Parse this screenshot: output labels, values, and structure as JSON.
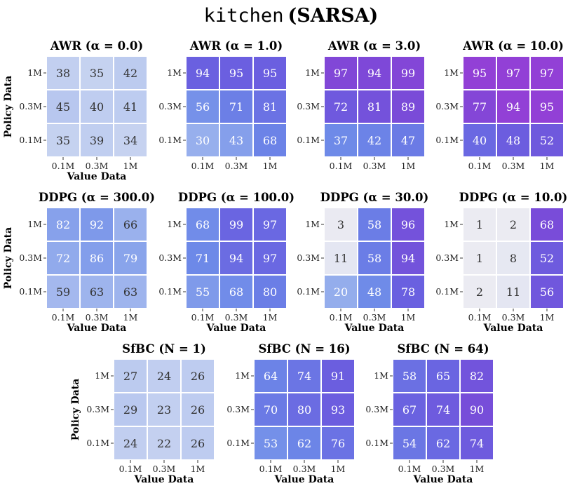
{
  "figure": {
    "title_env": "kitchen",
    "title_algo": "(SARSA)"
  },
  "colors": {
    "palette": [
      "#ececf2",
      "#c3d0f0",
      "#8ea8ec",
      "#6c88e8",
      "#6a60e0",
      "#7a4ad8",
      "#9240d6"
    ]
  },
  "chart_data": [
    {
      "type": "heatmap",
      "title": "AWR (α = 0.0)",
      "ylabel": "Policy Data",
      "xlabel": "Value Data",
      "x_categories": [
        "0.1M",
        "0.3M",
        "1M"
      ],
      "y_categories": [
        "1M",
        "0.3M",
        "0.1M"
      ],
      "values": [
        [
          38,
          35,
          42
        ],
        [
          45,
          40,
          41
        ],
        [
          35,
          39,
          34
        ]
      ],
      "hue": 0.0
    },
    {
      "type": "heatmap",
      "title": "AWR (α = 1.0)",
      "ylabel": "",
      "xlabel": "",
      "x_categories": [
        "0.1M",
        "0.3M",
        "1M"
      ],
      "y_categories": [
        "1M",
        "0.3M",
        "0.1M"
      ],
      "values": [
        [
          94,
          95,
          95
        ],
        [
          56,
          71,
          81
        ],
        [
          30,
          43,
          68
        ]
      ],
      "hue": 0.25
    },
    {
      "type": "heatmap",
      "title": "AWR (α = 3.0)",
      "ylabel": "",
      "xlabel": "",
      "x_categories": [
        "0.1M",
        "0.3M",
        "1M"
      ],
      "y_categories": [
        "1M",
        "0.3M",
        "0.1M"
      ],
      "values": [
        [
          97,
          94,
          99
        ],
        [
          72,
          81,
          89
        ],
        [
          37,
          42,
          47
        ]
      ],
      "hue": 0.45
    },
    {
      "type": "heatmap",
      "title": "AWR (α = 10.0)",
      "ylabel": "",
      "xlabel": "",
      "x_categories": [
        "0.1M",
        "0.3M",
        "1M"
      ],
      "y_categories": [
        "1M",
        "0.3M",
        "0.1M"
      ],
      "values": [
        [
          95,
          97,
          97
        ],
        [
          77,
          94,
          95
        ],
        [
          40,
          48,
          52
        ]
      ],
      "hue": 0.62
    },
    {
      "type": "heatmap",
      "title": "DDPG (α = 300.0)",
      "ylabel": "Policy Data",
      "xlabel": "Value Data",
      "x_categories": [
        "0.1M",
        "0.3M",
        "1M"
      ],
      "y_categories": [
        "1M",
        "0.3M",
        "0.1M"
      ],
      "values": [
        [
          82,
          92,
          66
        ],
        [
          72,
          86,
          79
        ],
        [
          59,
          63,
          63
        ]
      ],
      "hue": 0.0
    },
    {
      "type": "heatmap",
      "title": "DDPG (α = 100.0)",
      "ylabel": "",
      "xlabel": "Value Data",
      "x_categories": [
        "0.1M",
        "0.3M",
        "1M"
      ],
      "y_categories": [
        "1M",
        "0.3M",
        "0.1M"
      ],
      "values": [
        [
          68,
          99,
          97
        ],
        [
          71,
          94,
          97
        ],
        [
          55,
          68,
          80
        ]
      ],
      "hue": 0.2
    },
    {
      "type": "heatmap",
      "title": "DDPG (α = 30.0)",
      "ylabel": "",
      "xlabel": "Value Data",
      "x_categories": [
        "0.1M",
        "0.3M",
        "1M"
      ],
      "y_categories": [
        "1M",
        "0.3M",
        "0.1M"
      ],
      "values": [
        [
          3,
          58,
          96
        ],
        [
          11,
          58,
          94
        ],
        [
          20,
          48,
          78
        ]
      ],
      "hue": 0.35
    },
    {
      "type": "heatmap",
      "title": "DDPG (α = 10.0)",
      "ylabel": "",
      "xlabel": "Value Data",
      "x_categories": [
        "0.1M",
        "0.3M",
        "1M"
      ],
      "y_categories": [
        "1M",
        "0.3M",
        "0.1M"
      ],
      "values": [
        [
          1,
          2,
          68
        ],
        [
          1,
          8,
          52
        ],
        [
          2,
          11,
          56
        ]
      ],
      "hue": 0.6
    },
    {
      "type": "heatmap",
      "title": "SfBC (N = 1)",
      "ylabel": "Policy Data",
      "xlabel": "Value Data",
      "x_categories": [
        "0.1M",
        "0.3M",
        "1M"
      ],
      "y_categories": [
        "1M",
        "0.3M",
        "0.1M"
      ],
      "values": [
        [
          27,
          24,
          26
        ],
        [
          29,
          23,
          26
        ],
        [
          24,
          22,
          26
        ]
      ],
      "hue": 0.1
    },
    {
      "type": "heatmap",
      "title": "SfBC (N = 16)",
      "ylabel": "",
      "xlabel": "Value Data",
      "x_categories": [
        "0.1M",
        "0.3M",
        "1M"
      ],
      "y_categories": [
        "1M",
        "0.3M",
        "0.1M"
      ],
      "values": [
        [
          64,
          74,
          91
        ],
        [
          70,
          80,
          93
        ],
        [
          53,
          62,
          76
        ]
      ],
      "hue": 0.28
    },
    {
      "type": "heatmap",
      "title": "SfBC (N = 64)",
      "ylabel": "",
      "xlabel": "Value Data",
      "x_categories": [
        "0.1M",
        "0.3M",
        "1M"
      ],
      "y_categories": [
        "1M",
        "0.3M",
        "0.1M"
      ],
      "values": [
        [
          58,
          65,
          82
        ],
        [
          67,
          74,
          90
        ],
        [
          54,
          62,
          74
        ]
      ],
      "hue": 0.42
    }
  ]
}
